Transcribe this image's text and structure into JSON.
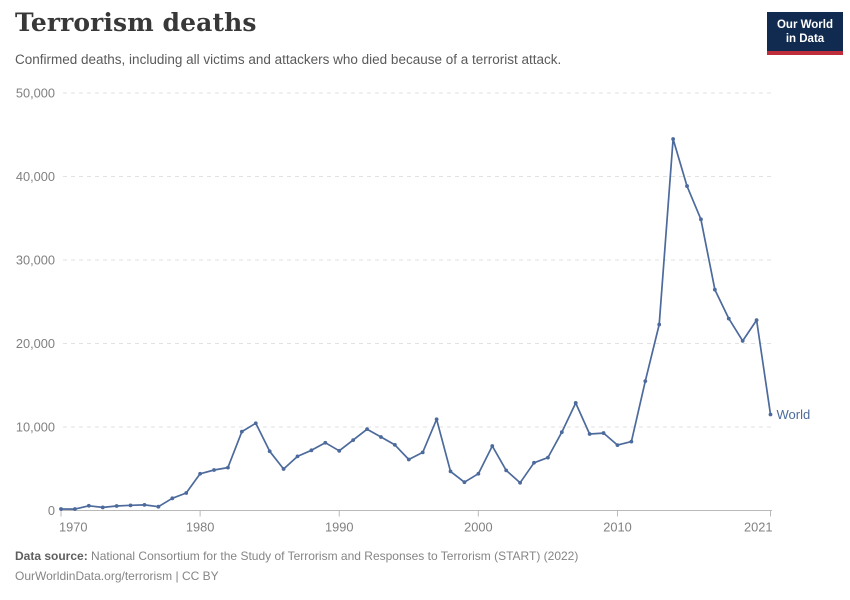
{
  "header": {
    "title": "Terrorism deaths",
    "subtitle": "Confirmed deaths, including all victims and attackers who died because of a terrorist attack.",
    "logo": {
      "line1": "Our World",
      "line2": "in Data"
    }
  },
  "footer": {
    "source_label": "Data source:",
    "source_text": " National Consortium for the Study of Terrorism and Responses to Terrorism (START) (2022)",
    "license_text": "OurWorldinData.org/terrorism | CC BY"
  },
  "colors": {
    "series": "#4C6A9C",
    "logo_navy": "#102A50",
    "logo_red": "#BE2D3C",
    "grid": "#e2e2e2",
    "axis": "#b9b9b9",
    "tick_label": "#818181"
  },
  "chart_data": {
    "type": "line",
    "title": "Terrorism deaths",
    "xlabel": "",
    "ylabel": "",
    "xlim": [
      1970,
      2021
    ],
    "ylim": [
      0,
      50000
    ],
    "grid": "horizontal-dashed",
    "legend_position": "end-of-line",
    "end_label": "World",
    "x_ticks": [
      {
        "value": 1970,
        "label": "1970"
      },
      {
        "value": 1980,
        "label": "1980"
      },
      {
        "value": 1990,
        "label": "1990"
      },
      {
        "value": 2000,
        "label": "2000"
      },
      {
        "value": 2010,
        "label": "2010"
      },
      {
        "value": 2021,
        "label": "2021"
      }
    ],
    "y_ticks": [
      {
        "value": 0,
        "label": "0"
      },
      {
        "value": 10000,
        "label": "10,000"
      },
      {
        "value": 20000,
        "label": "20,000"
      },
      {
        "value": 30000,
        "label": "30,000"
      },
      {
        "value": 40000,
        "label": "40,000"
      },
      {
        "value": 50000,
        "label": "50,000"
      }
    ],
    "series": [
      {
        "name": "World",
        "x": [
          1970,
          1971,
          1972,
          1973,
          1974,
          1975,
          1976,
          1977,
          1978,
          1979,
          1980,
          1981,
          1982,
          1983,
          1984,
          1985,
          1986,
          1987,
          1988,
          1989,
          1990,
          1991,
          1992,
          1993,
          1994,
          1995,
          1996,
          1997,
          1998,
          1999,
          2000,
          2001,
          2002,
          2003,
          2004,
          2005,
          2006,
          2007,
          2008,
          2009,
          2010,
          2011,
          2012,
          2013,
          2014,
          2015,
          2016,
          2017,
          2018,
          2019,
          2020,
          2021
        ],
        "values": [
          174,
          173,
          566,
          370,
          539,
          617,
          672,
          456,
          1459,
          2100,
          4400,
          4851,
          5135,
          9444,
          10450,
          7094,
          4976,
          6482,
          7208,
          8114,
          7148,
          8429,
          9742,
          8800,
          7858,
          6104,
          6960,
          10924,
          4688,
          3389,
          4405,
          7729,
          4805,
          3317,
          5716,
          6331,
          9380,
          12879,
          9160,
          9272,
          7827,
          8246,
          15497,
          22273,
          44490,
          38853,
          34871,
          26445,
          22980,
          20309,
          22801,
          11500
        ]
      }
    ]
  }
}
